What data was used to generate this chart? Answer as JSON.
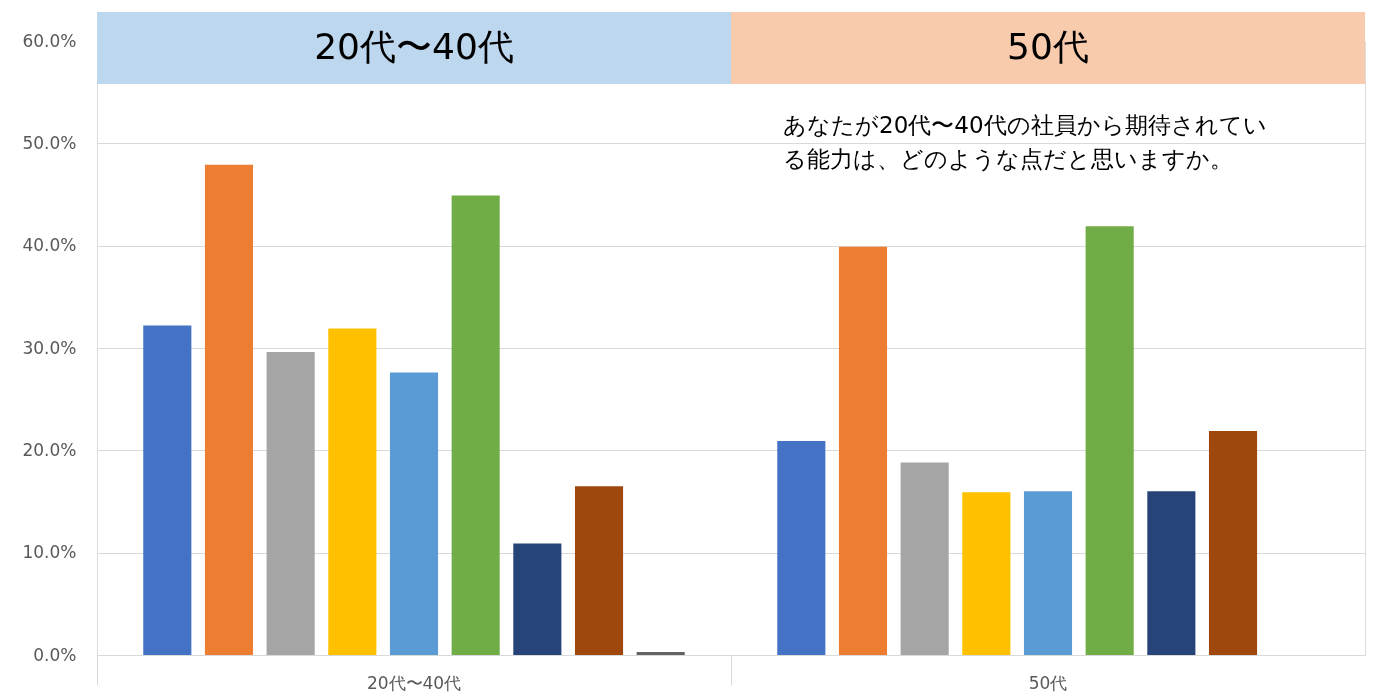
{
  "chart_data": {
    "type": "bar",
    "title": "あなたが20代〜40代の社員から期待されている能力は、どのような点だと思いますか。",
    "categories": [
      "20代〜40代",
      "50代"
    ],
    "series": [
      {
        "color": "#4472c4",
        "values": [
          32.2,
          20.9
        ]
      },
      {
        "color": "#ed7d31",
        "values": [
          47.9,
          39.9
        ]
      },
      {
        "color": "#a5a5a5",
        "values": [
          29.6,
          18.8
        ]
      },
      {
        "color": "#ffc000",
        "values": [
          31.9,
          15.9
        ]
      },
      {
        "color": "#5b9bd5",
        "values": [
          27.6,
          16
        ]
      },
      {
        "color": "#70ad47",
        "values": [
          44.9,
          41.9
        ]
      },
      {
        "color": "#264478",
        "values": [
          10.9,
          16
        ]
      },
      {
        "color": "#9e480e",
        "values": [
          16.5,
          21.9
        ]
      },
      {
        "color": "#636363",
        "values": [
          0.3,
          null
        ]
      }
    ],
    "bands": [
      {
        "axis": "x",
        "from": "20代〜40代",
        "to": "20代〜40代",
        "color": "#bdd7ee"
      },
      {
        "axis": "x",
        "from": "50代",
        "to": "50代",
        "color": "#f8cbad"
      }
    ],
    "ylim": [
      0,
      60
    ],
    "yticks": [
      {
        "value": 0,
        "label": "0.0%"
      },
      {
        "value": 10,
        "label": "10.0%"
      },
      {
        "value": 20,
        "label": "20.0%"
      },
      {
        "value": 30,
        "label": "30.0%"
      },
      {
        "value": 40,
        "label": "40.0%"
      },
      {
        "value": 50,
        "label": "50.0%"
      },
      {
        "value": 60,
        "label": "60.0%"
      }
    ],
    "grid": "y"
  }
}
